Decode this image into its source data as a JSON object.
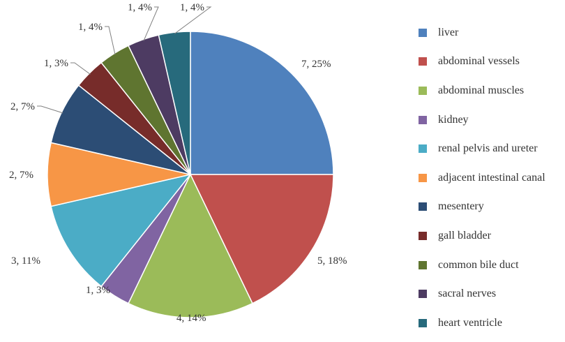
{
  "chart_data": {
    "type": "pie",
    "title": "",
    "categories": [
      "liver",
      "abdominal vessels",
      "abdominal muscles",
      "kidney",
      "renal pelvis and ureter",
      "adjacent intestinal canal",
      "mesentery",
      "gall bladder",
      "common bile duct",
      "sacral nerves",
      "heart ventricle"
    ],
    "values": [
      7,
      5,
      4,
      1,
      3,
      2,
      2,
      1,
      1,
      1,
      1
    ],
    "data_labels": [
      "7, 25%",
      "5, 18%",
      "4, 14%",
      "1, 3%",
      "3, 11%",
      "2, 7%",
      "2, 7%",
      "1, 3%",
      "1, 4%",
      "1, 4%",
      "1, 4%"
    ],
    "colors": [
      "#4F81BD",
      "#C0504D",
      "#9BBB59",
      "#8064A2",
      "#4BACC6",
      "#F79646",
      "#2C4D75",
      "#772C2A",
      "#5F7530",
      "#4D3B62",
      "#276A7C"
    ],
    "legend_position": "right",
    "start_angle": "12 o'clock, clockwise"
  }
}
